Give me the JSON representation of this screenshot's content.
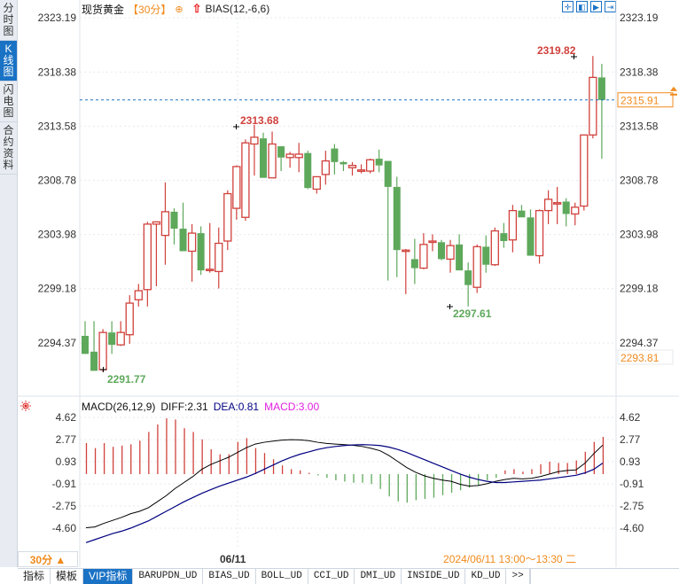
{
  "sidebar": {
    "tabs": [
      {
        "label": "分时图",
        "active": false
      },
      {
        "label": "K线图",
        "active": true
      },
      {
        "label": "闪电图",
        "active": false
      },
      {
        "label": "合约资料",
        "active": false
      }
    ]
  },
  "header": {
    "instrument": "现货黄金",
    "period_tag": "【30分】",
    "add_icon": "⊕",
    "indicator": "BIAS(12,-6,6)",
    "tool_buttons": [
      "crosshair-icon",
      "zoom-in-icon",
      "zoom-out-icon",
      "go-latest-icon"
    ]
  },
  "price_axis": {
    "labels": [
      "2323.19",
      "2318.38",
      "2313.58",
      "2308.78",
      "2303.98",
      "2299.18",
      "2294.37"
    ],
    "current_price": "2315.91",
    "cursor_price": "2293.81"
  },
  "annotations": {
    "high_1": "2313.68",
    "high_2": "2319.82",
    "low_1": "2291.77",
    "low_2": "2297.61"
  },
  "macd": {
    "title": "MACD(26,12,9)",
    "diff": "DIFF:2.31",
    "dea": "DEA:0.81",
    "macd": "MACD:3.00",
    "axis_labels": [
      "4.62",
      "2.77",
      "0.93",
      "-0.91",
      "-2.75",
      "-4.60"
    ]
  },
  "footer": {
    "period": "30分 ▲",
    "date_tick": "06/11",
    "cursor_datetime": "2024/06/11 13:00～13:30 二"
  },
  "bottom_tabs": [
    "指标",
    "模板",
    "VIP指标",
    "BARUPDN_UD",
    "BIAS_UD",
    "BOLL_UD",
    "CCI_UD",
    "DMI_UD",
    "INSIDE_UD",
    "KD_UD",
    ">>"
  ],
  "colors": {
    "up": "#d0413c",
    "down": "#5ea85b",
    "accent": "#f08a1c",
    "blue": "#1a72c4",
    "dea_line": "#000080",
    "diff_line": "#000000",
    "macd_label": "#e020e0"
  },
  "chart_data": [
    {
      "type": "candlestick",
      "title": "现货黄金 30分 K线",
      "ylim": [
        2290.5,
        2324.5
      ],
      "y_ticks": [
        2323.19,
        2318.38,
        2313.58,
        2308.78,
        2303.98,
        2299.18,
        2294.37
      ],
      "current_price": 2315.91,
      "annotated_high": [
        2313.68,
        2319.82
      ],
      "annotated_low": [
        2291.77,
        2297.61
      ],
      "candles": [
        {
          "o": 2295.0,
          "h": 2296.3,
          "l": 2293.6,
          "c": 2293.4
        },
        {
          "o": 2293.6,
          "h": 2296.3,
          "l": 2291.9,
          "c": 2291.9
        },
        {
          "o": 2292.0,
          "h": 2295.6,
          "l": 2291.8,
          "c": 2295.3
        },
        {
          "o": 2295.3,
          "h": 2296.3,
          "l": 2293.4,
          "c": 2294.2
        },
        {
          "o": 2294.2,
          "h": 2296.3,
          "l": 2294.1,
          "c": 2295.3
        },
        {
          "o": 2295.1,
          "h": 2298.6,
          "l": 2294.3,
          "c": 2297.9
        },
        {
          "o": 2298.2,
          "h": 2299.6,
          "l": 2297.6,
          "c": 2299.0
        },
        {
          "o": 2299.1,
          "h": 2305.1,
          "l": 2297.6,
          "c": 2304.9
        },
        {
          "o": 2304.9,
          "h": 2305.1,
          "l": 2299.4,
          "c": 2305.1
        },
        {
          "o": 2303.9,
          "h": 2308.6,
          "l": 2301.3,
          "c": 2306.0
        },
        {
          "o": 2306.0,
          "h": 2306.3,
          "l": 2303.1,
          "c": 2304.5
        },
        {
          "o": 2304.5,
          "h": 2306.8,
          "l": 2302.5,
          "c": 2302.5
        },
        {
          "o": 2302.5,
          "h": 2304.9,
          "l": 2299.8,
          "c": 2304.1
        },
        {
          "o": 2304.1,
          "h": 2304.7,
          "l": 2300.4,
          "c": 2300.8
        },
        {
          "o": 2300.9,
          "h": 2305.0,
          "l": 2300.6,
          "c": 2300.9
        },
        {
          "o": 2300.7,
          "h": 2304.6,
          "l": 2299.2,
          "c": 2303.2
        },
        {
          "o": 2303.4,
          "h": 2307.9,
          "l": 2302.6,
          "c": 2307.6
        },
        {
          "o": 2306.3,
          "h": 2310.1,
          "l": 2305.3,
          "c": 2310.0
        },
        {
          "o": 2305.5,
          "h": 2312.4,
          "l": 2305.2,
          "c": 2312.1
        },
        {
          "o": 2312.0,
          "h": 2313.7,
          "l": 2309.2,
          "c": 2312.6
        },
        {
          "o": 2312.5,
          "h": 2313.0,
          "l": 2309.0,
          "c": 2309.0
        },
        {
          "o": 2309.0,
          "h": 2313.1,
          "l": 2309.0,
          "c": 2312.0
        },
        {
          "o": 2311.8,
          "h": 2311.8,
          "l": 2309.6,
          "c": 2310.8
        },
        {
          "o": 2310.8,
          "h": 2311.3,
          "l": 2309.9,
          "c": 2311.1
        },
        {
          "o": 2310.8,
          "h": 2312.1,
          "l": 2309.5,
          "c": 2311.1
        },
        {
          "o": 2311.2,
          "h": 2311.4,
          "l": 2308.0,
          "c": 2308.1
        },
        {
          "o": 2308.0,
          "h": 2309.1,
          "l": 2307.6,
          "c": 2309.1
        },
        {
          "o": 2309.3,
          "h": 2311.4,
          "l": 2308.4,
          "c": 2310.5
        },
        {
          "o": 2311.6,
          "h": 2312.0,
          "l": 2309.3,
          "c": 2310.4
        },
        {
          "o": 2310.4,
          "h": 2310.5,
          "l": 2309.6,
          "c": 2310.2
        },
        {
          "o": 2309.9,
          "h": 2310.4,
          "l": 2309.2,
          "c": 2310.1
        },
        {
          "o": 2309.7,
          "h": 2310.2,
          "l": 2309.4,
          "c": 2309.7
        },
        {
          "o": 2309.6,
          "h": 2310.7,
          "l": 2309.4,
          "c": 2310.6
        },
        {
          "o": 2310.7,
          "h": 2311.5,
          "l": 2309.5,
          "c": 2310.1
        },
        {
          "o": 2310.5,
          "h": 2310.5,
          "l": 2299.9,
          "c": 2308.2
        },
        {
          "o": 2308.2,
          "h": 2309.1,
          "l": 2300.2,
          "c": 2302.6
        },
        {
          "o": 2302.6,
          "h": 2302.7,
          "l": 2298.7,
          "c": 2302.6
        },
        {
          "o": 2301.8,
          "h": 2303.6,
          "l": 2299.6,
          "c": 2301.0
        },
        {
          "o": 2301.0,
          "h": 2304.1,
          "l": 2300.9,
          "c": 2303.1
        },
        {
          "o": 2303.4,
          "h": 2304.0,
          "l": 2302.5,
          "c": 2303.4
        },
        {
          "o": 2303.3,
          "h": 2303.5,
          "l": 2301.7,
          "c": 2301.8
        },
        {
          "o": 2301.8,
          "h": 2303.5,
          "l": 2300.6,
          "c": 2303.0
        },
        {
          "o": 2303.1,
          "h": 2304.0,
          "l": 2300.8,
          "c": 2300.8
        },
        {
          "o": 2300.8,
          "h": 2301.5,
          "l": 2297.6,
          "c": 2299.5
        },
        {
          "o": 2299.3,
          "h": 2303.1,
          "l": 2298.8,
          "c": 2302.9
        },
        {
          "o": 2302.9,
          "h": 2303.9,
          "l": 2300.6,
          "c": 2301.3
        },
        {
          "o": 2301.3,
          "h": 2304.6,
          "l": 2301.2,
          "c": 2304.3
        },
        {
          "o": 2304.1,
          "h": 2305.0,
          "l": 2302.8,
          "c": 2303.4
        },
        {
          "o": 2303.5,
          "h": 2306.6,
          "l": 2302.4,
          "c": 2306.1
        },
        {
          "o": 2306.1,
          "h": 2306.6,
          "l": 2305.5,
          "c": 2305.5
        },
        {
          "o": 2305.5,
          "h": 2306.2,
          "l": 2302.1,
          "c": 2302.1
        },
        {
          "o": 2302.1,
          "h": 2306.2,
          "l": 2301.4,
          "c": 2306.1
        },
        {
          "o": 2306.1,
          "h": 2307.9,
          "l": 2304.9,
          "c": 2307.1
        },
        {
          "o": 2306.8,
          "h": 2308.2,
          "l": 2304.9,
          "c": 2306.8
        },
        {
          "o": 2306.9,
          "h": 2307.2,
          "l": 2304.7,
          "c": 2305.8
        },
        {
          "o": 2305.8,
          "h": 2306.8,
          "l": 2304.8,
          "c": 2306.4
        },
        {
          "o": 2306.5,
          "h": 2312.3,
          "l": 2306.1,
          "c": 2312.8
        },
        {
          "o": 2312.8,
          "h": 2319.8,
          "l": 2312.5,
          "c": 2317.9
        },
        {
          "o": 2317.9,
          "h": 2319.1,
          "l": 2310.7,
          "c": 2315.9
        }
      ]
    },
    {
      "type": "macd",
      "title": "MACD(26,12,9)",
      "ylim": [
        -5.6,
        4.9
      ],
      "y_ticks": [
        4.62,
        2.77,
        0.93,
        -0.91,
        -2.75,
        -4.6
      ],
      "diff_last": 2.31,
      "dea_last": 0.81,
      "macd_last": 3.0,
      "diff": [
        -4.56,
        -4.5,
        -4.2,
        -3.95,
        -3.7,
        -3.4,
        -3.2,
        -2.9,
        -2.4,
        -1.9,
        -1.3,
        -0.8,
        -0.3,
        0.3,
        0.7,
        1.0,
        1.3,
        1.7,
        2.1,
        2.4,
        2.55,
        2.65,
        2.73,
        2.77,
        2.75,
        2.68,
        2.55,
        2.45,
        2.4,
        2.35,
        2.3,
        2.2,
        2.05,
        1.85,
        1.45,
        0.95,
        0.45,
        0.05,
        -0.25,
        -0.45,
        -0.6,
        -0.7,
        -0.95,
        -1.1,
        -1.05,
        -0.9,
        -0.7,
        -0.55,
        -0.45,
        -0.5,
        -0.45,
        -0.3,
        -0.1,
        0.1,
        0.2,
        0.25,
        0.8,
        1.6,
        2.31
      ],
      "dea": [
        -5.8,
        -5.55,
        -5.3,
        -5.05,
        -4.85,
        -4.6,
        -4.3,
        -4.0,
        -3.6,
        -3.2,
        -2.8,
        -2.4,
        -2.05,
        -1.7,
        -1.4,
        -1.1,
        -0.85,
        -0.6,
        -0.35,
        -0.05,
        0.3,
        0.65,
        1.0,
        1.3,
        1.55,
        1.75,
        1.95,
        2.1,
        2.2,
        2.28,
        2.33,
        2.35,
        2.33,
        2.28,
        2.15,
        1.95,
        1.7,
        1.4,
        1.1,
        0.8,
        0.5,
        0.2,
        -0.1,
        -0.35,
        -0.55,
        -0.7,
        -0.8,
        -0.8,
        -0.75,
        -0.7,
        -0.65,
        -0.6,
        -0.5,
        -0.4,
        -0.3,
        -0.2,
        0.0,
        0.3,
        0.81
      ],
      "macd": [
        2.5,
        2.1,
        2.5,
        2.2,
        2.3,
        2.4,
        2.7,
        3.4,
        4.0,
        4.5,
        4.4,
        3.7,
        3.4,
        2.8,
        2.0,
        1.6,
        1.6,
        2.6,
        2.9,
        2.1,
        1.7,
        1.2,
        0.7,
        0.4,
        0.3,
        0.1,
        -0.1,
        -0.3,
        -0.5,
        -0.6,
        -0.7,
        -0.7,
        -0.8,
        -1.2,
        -1.8,
        -2.2,
        -2.3,
        -2.1,
        -2.0,
        -1.9,
        -1.7,
        -1.5,
        -1.3,
        -1.1,
        -0.9,
        -0.5,
        -0.3,
        0.3,
        0.4,
        0.2,
        0.4,
        0.8,
        1.0,
        0.9,
        0.9,
        1.1,
        1.8,
        2.6,
        3.0
      ]
    }
  ]
}
